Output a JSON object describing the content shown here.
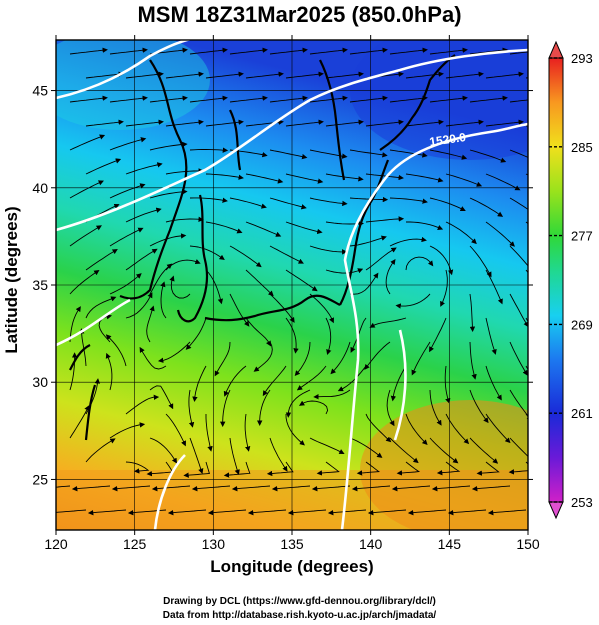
{
  "title": "MSM 18Z31Mar2025 (850.0hPa)",
  "xlabel": "Longitude (degrees)",
  "ylabel": "Latitude  (degrees)",
  "xticks": [
    {
      "label": "120",
      "value": 120
    },
    {
      "label": "125",
      "value": 125
    },
    {
      "label": "130",
      "value": 130
    },
    {
      "label": "135",
      "value": 135
    },
    {
      "label": "140",
      "value": 140
    },
    {
      "label": "145",
      "value": 145
    },
    {
      "label": "150",
      "value": 150
    }
  ],
  "yticks": [
    {
      "label": "25",
      "value": 25
    },
    {
      "label": "30",
      "value": 30
    },
    {
      "label": "35",
      "value": 35
    },
    {
      "label": "40",
      "value": 40
    },
    {
      "label": "45",
      "value": 45
    }
  ],
  "extent": {
    "lon": [
      120,
      150
    ],
    "lat": [
      22.4,
      47.6
    ]
  },
  "colorbar": {
    "min": 253,
    "max": 293,
    "labels": [
      {
        "label": "293",
        "value": 293
      },
      {
        "label": "285",
        "value": 285
      },
      {
        "label": "277",
        "value": 277
      },
      {
        "label": "269",
        "value": 269
      },
      {
        "label": "261",
        "value": 261
      },
      {
        "label": "253",
        "value": 253
      }
    ]
  },
  "contours": [
    {
      "label": "1520.0",
      "color": "#ffffff"
    }
  ],
  "credits": [
    "Drawing by DCL (https://www.gfd-dennou.org/library/dcl/)",
    "Data from http://database.rish.kyoto-u.ac.jp/arch/jmadata/"
  ]
}
